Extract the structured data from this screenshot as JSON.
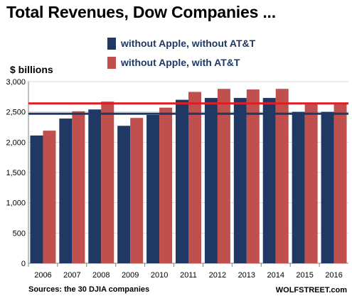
{
  "chart_data": {
    "type": "bar",
    "title": "Total Revenues, Dow Companies ...",
    "ylabel": "$ billions",
    "xlabel": "",
    "categories": [
      "2006",
      "2007",
      "2008",
      "2009",
      "2010",
      "2011",
      "2012",
      "2013",
      "2014",
      "2015",
      "2016"
    ],
    "series": [
      {
        "name": "without Apple, without AT&T",
        "color": "#1f3864",
        "values": [
          2110,
          2390,
          2540,
          2270,
          2450,
          2700,
          2730,
          2730,
          2730,
          2500,
          2500
        ]
      },
      {
        "name": "without Apple, with AT&T",
        "color": "#c0504d",
        "values": [
          2190,
          2510,
          2670,
          2400,
          2570,
          2830,
          2880,
          2870,
          2880,
          2650,
          2650
        ]
      }
    ],
    "reference_lines": [
      {
        "value": 2470,
        "color": "#1f3864"
      },
      {
        "value": 2640,
        "color": "#e31c23"
      }
    ],
    "ylim": [
      0,
      3000
    ],
    "yticks": [
      0,
      500,
      1000,
      1500,
      2000,
      2500,
      3000
    ],
    "ytick_labels": [
      "0",
      "500",
      "1,000",
      "1,500",
      "2,000",
      "2,500",
      "3,000"
    ],
    "grid": true,
    "legend": "top"
  },
  "source": "Sources: the 30 DJIA companies",
  "credit": "WOLFSTREET.com"
}
